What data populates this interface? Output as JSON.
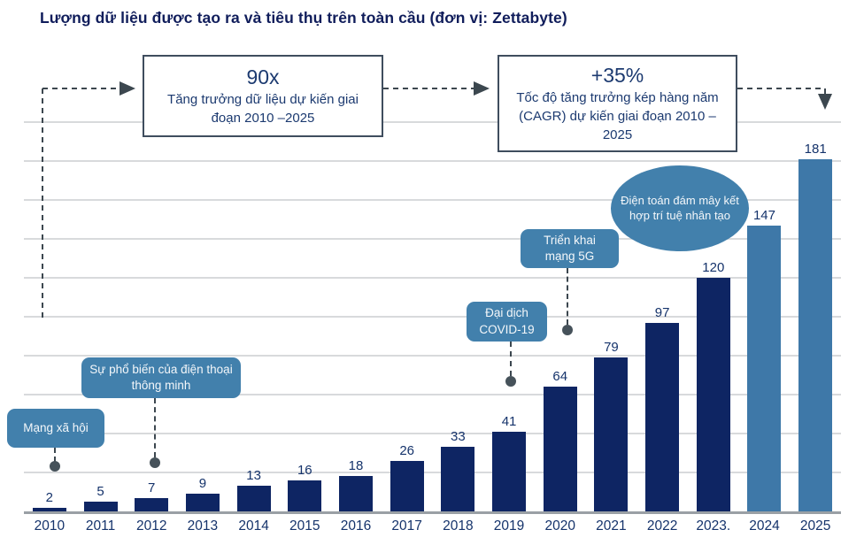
{
  "title": "Lượng dữ liệu được tạo ra và tiêu thụ trên toàn cầu (đơn vị: Zettabyte)",
  "annotations": [
    {
      "headline": "90x",
      "body": "Tăng trưởng dữ liệu dự kiến giai đoạn 2010 –2025"
    },
    {
      "headline": "+35%",
      "body": "Tốc độ tăng trưởng kép hàng năm (CAGR) dự kiến giai đoạn 2010 –2025"
    }
  ],
  "callouts": [
    {
      "id": "social",
      "label": "Mạng xã hội"
    },
    {
      "id": "smartphone",
      "label": "Sự phổ biến của điện thoại thông minh"
    },
    {
      "id": "covid",
      "label": "Đại dịch COVID-19"
    },
    {
      "id": "g5",
      "label": "Triển khai mạng 5G"
    },
    {
      "id": "cloud-ai",
      "label": "Điện toán đám mây kết hợp trí tuệ nhân tạo"
    }
  ],
  "colors": {
    "bar_historical": "#0e2563",
    "bar_forecast": "#3e78a8",
    "callout_bubble": "#4280ac",
    "label_text": "#15336b",
    "title_text": "#101d5b",
    "dashed_line": "#3c474f",
    "gridline": "#d8dadc",
    "axis_line": "#9aa0a5"
  },
  "chart_data": {
    "type": "bar",
    "title": "Lượng dữ liệu được tạo ra và tiêu thụ trên toàn cầu (đơn vị: Zettabyte)",
    "categories": [
      "2010",
      "2011",
      "2012",
      "2013",
      "2014",
      "2015",
      "2016",
      "2017",
      "2018",
      "2019",
      "2020",
      "2021",
      "2022",
      "2023.",
      "2024",
      "2025"
    ],
    "values": [
      2,
      5,
      7,
      9,
      13,
      16,
      18,
      26,
      33,
      41,
      64,
      79,
      97,
      120,
      147,
      181
    ],
    "forecast_categories": [
      "2024",
      "2025"
    ],
    "xlabel": "",
    "ylabel": "Zettabyte",
    "ylim": [
      0,
      200
    ],
    "gridline_step": 20,
    "grid": true,
    "legend_position": "none",
    "annotations_text": {
      "growth_multiple": "90x — Tăng trưởng dữ liệu dự kiến giai đoạn 2010 –2025",
      "cagr": "+35% — Tốc độ tăng trưởng kép hàng năm (CAGR) dự kiến giai đoạn 2010 –2025"
    },
    "event_markers": [
      {
        "category": "2010",
        "label": "Mạng xã hội"
      },
      {
        "category": "2012",
        "label": "Sự phổ biến của điện thoại thông minh"
      },
      {
        "category": "2019",
        "label": "Đại dịch COVID-19"
      },
      {
        "category": "2020",
        "label": "Triển khai mạng 5G"
      },
      {
        "category": "2021-2022",
        "label": "Điện toán đám mây kết hợp trí tuệ nhân tạo"
      }
    ]
  }
}
